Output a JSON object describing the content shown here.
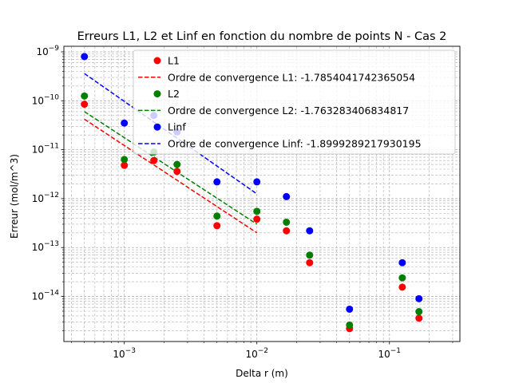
{
  "chart_data": {
    "type": "scatter",
    "title": "Erreurs L1, L2 et Linf en fonction du nombre de points N - Cas 2",
    "xlabel": "Delta r (m)",
    "ylabel": "Erreur (mol/m^3)",
    "xscale": "log",
    "yscale": "log",
    "xlim": [
      0.00035,
      0.34
    ],
    "ylim": [
      1.2e-15,
      1.3e-09
    ],
    "grid": true,
    "grid_which": "both",
    "legend_location": "top-right",
    "x_ticks": [
      {
        "value": 0.001,
        "base": "10",
        "exp": "−3"
      },
      {
        "value": 0.01,
        "base": "10",
        "exp": "−2"
      },
      {
        "value": 0.1,
        "base": "10",
        "exp": "−1"
      }
    ],
    "y_ticks": [
      {
        "value": 1e-14,
        "base": "10",
        "exp": "−14"
      },
      {
        "value": 1e-13,
        "base": "10",
        "exp": "−13"
      },
      {
        "value": 1e-12,
        "base": "10",
        "exp": "−12"
      },
      {
        "value": 1e-11,
        "base": "10",
        "exp": "−11"
      },
      {
        "value": 1e-10,
        "base": "10",
        "exp": "−10"
      },
      {
        "value": 1e-09,
        "base": "10",
        "exp": "−9"
      }
    ],
    "x": [
      0.0005,
      0.001,
      0.00167,
      0.0025,
      0.005,
      0.01,
      0.0167,
      0.025,
      0.05,
      0.125,
      0.167
    ],
    "series": [
      {
        "name": "L1",
        "color": "#ff0000",
        "values": [
          8.5e-11,
          4.8e-12,
          6e-12,
          3.6e-12,
          2.8e-13,
          3.8e-13,
          2.2e-13,
          4.9e-14,
          2.2e-15,
          1.55e-14,
          3.6e-15
        ]
      },
      {
        "name": "L2",
        "color": "#008000",
        "values": [
          1.25e-10,
          6.3e-12,
          9e-12,
          5e-12,
          4.4e-13,
          5.5e-13,
          3.3e-13,
          7e-14,
          2.6e-15,
          2.4e-14,
          4.9e-15
        ]
      },
      {
        "name": "Linf",
        "color": "#0000ff",
        "values": [
          8e-10,
          3.5e-11,
          5e-11,
          2.3e-11,
          2.2e-12,
          2.2e-12,
          1.1e-12,
          2.2e-13,
          5.5e-15,
          4.9e-14,
          9e-15
        ]
      }
    ],
    "fit_lines": [
      {
        "name": "Ordre de convergence L1: -1.7854041742365054",
        "color": "#ff0000",
        "x": [
          0.0005,
          0.01
        ],
        "y": [
          4.2e-11,
          2e-13
        ]
      },
      {
        "name": "Ordre de convergence L2: -1.763283406834817",
        "color": "#008000",
        "x": [
          0.0005,
          0.01
        ],
        "y": [
          6e-11,
          3e-13
        ]
      },
      {
        "name": "Ordre de convergence Linf: -1.8999289217930195",
        "color": "#0000ff",
        "x": [
          0.0005,
          0.01
        ],
        "y": [
          3.6e-10,
          1.25e-12
        ]
      }
    ],
    "legend": [
      {
        "label": "L1",
        "kind": "marker",
        "color": "#ff0000"
      },
      {
        "label": "Ordre de convergence L1: -1.7854041742365054",
        "kind": "dashed",
        "color": "#ff0000"
      },
      {
        "label": "L2",
        "kind": "marker",
        "color": "#008000"
      },
      {
        "label": "Ordre de convergence L2: -1.763283406834817",
        "kind": "dashed",
        "color": "#008000"
      },
      {
        "label": "Linf",
        "kind": "marker",
        "color": "#0000ff"
      },
      {
        "label": "Ordre de convergence Linf: -1.8999289217930195",
        "kind": "dashed",
        "color": "#0000ff"
      }
    ]
  }
}
